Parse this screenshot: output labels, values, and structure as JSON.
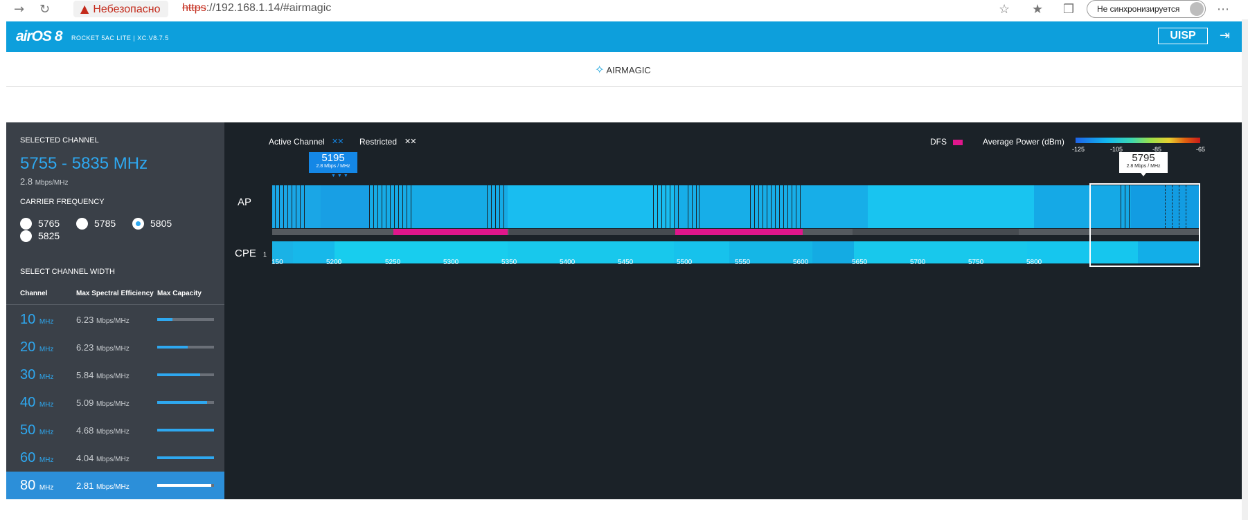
{
  "browser": {
    "security_label": "Небезопасно",
    "url_scheme": "https",
    "url_rest": "://192.168.1.14/#airmagic",
    "sync_label": "Не синхронизируется"
  },
  "header": {
    "logo": "airOS 8",
    "model": "ROCKET 5AC LITE | XC.V8.7.5",
    "uisp_label": "UISP"
  },
  "page": {
    "title": "AIRMAGIC"
  },
  "sidebar": {
    "selected_channel_label": "SELECTED CHANNEL",
    "selected_range": "5755 - 5835 MHz",
    "selected_efficiency_value": "2.8",
    "selected_efficiency_unit": "Mbps/MHz",
    "carrier_label": "CARRIER FREQUENCY",
    "carriers": [
      {
        "value": "5765",
        "checked": false
      },
      {
        "value": "5785",
        "checked": false
      },
      {
        "value": "5805",
        "checked": true
      },
      {
        "value": "5825",
        "checked": false
      }
    ],
    "width_label": "SELECT CHANNEL WIDTH",
    "columns": [
      "Channel",
      "Max Spectral Efficiency",
      "Max Capacity"
    ],
    "rows": [
      {
        "width": "10",
        "unit": "MHz",
        "eff": "6.23",
        "eff_unit": "Mbps/MHz",
        "capacity": 0.27,
        "selected": false
      },
      {
        "width": "20",
        "unit": "MHz",
        "eff": "6.23",
        "eff_unit": "Mbps/MHz",
        "capacity": 0.54,
        "selected": false
      },
      {
        "width": "30",
        "unit": "MHz",
        "eff": "5.84",
        "eff_unit": "Mbps/MHz",
        "capacity": 0.75,
        "selected": false
      },
      {
        "width": "40",
        "unit": "MHz",
        "eff": "5.09",
        "eff_unit": "Mbps/MHz",
        "capacity": 0.88,
        "selected": false
      },
      {
        "width": "50",
        "unit": "MHz",
        "eff": "4.68",
        "eff_unit": "Mbps/MHz",
        "capacity": 1.0,
        "selected": false
      },
      {
        "width": "60",
        "unit": "MHz",
        "eff": "4.04",
        "eff_unit": "Mbps/MHz",
        "capacity": 1.0,
        "selected": false
      },
      {
        "width": "80",
        "unit": "MHz",
        "eff": "2.81",
        "eff_unit": "Mbps/MHz",
        "capacity": 0.95,
        "selected": true
      }
    ]
  },
  "spectrum": {
    "legend_active": "Active Channel",
    "legend_restricted": "Restricted",
    "legend_dfs": "DFS",
    "legend_power": "Average Power (dBm)",
    "power_scale": [
      "-125",
      "-105",
      "-85",
      "-65"
    ],
    "ap_label": "AP",
    "cpe_label": "CPE",
    "cpe_count": "1",
    "ticks": [
      "150",
      "5200",
      "5250",
      "5300",
      "5350",
      "5400",
      "5450",
      "5500",
      "5550",
      "5600",
      "5650",
      "5700",
      "5750",
      "5800"
    ],
    "active_tip": {
      "freq": "5195",
      "eff": "2.8 Mbps / MHz"
    },
    "selected_tip": {
      "freq": "5795",
      "eff": "2.8 Mbps / MHz"
    },
    "colors": {
      "active": "#1487e6",
      "dfs": "#e0168c",
      "accent": "#0d9fdc"
    }
  }
}
